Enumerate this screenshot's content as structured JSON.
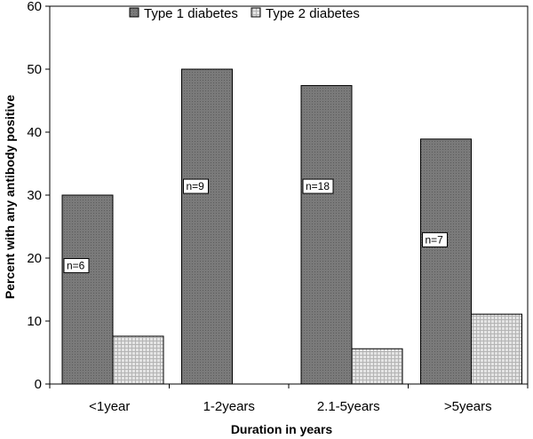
{
  "chart_data": {
    "type": "bar",
    "categories": [
      "<1year",
      "1-2years",
      "2.1-5years",
      ">5years"
    ],
    "series": [
      {
        "name": "Type 1 diabetes",
        "values": [
          30,
          50,
          47.4,
          38.9
        ],
        "color": "#7a7a7a"
      },
      {
        "name": "Type 2 diabetes",
        "values": [
          7.6,
          0,
          5.6,
          11.1
        ],
        "color": "#d8d8d8"
      }
    ],
    "annotations": [
      "n=6",
      "n=9",
      "n=18",
      "n=7"
    ],
    "annotation_values": [
      18.8,
      31.4,
      31.4,
      22.9
    ],
    "xlabel": "Duration in years",
    "ylabel": "Percent with any antibody positive",
    "ylim": [
      0,
      60
    ],
    "yticks": [
      0,
      10,
      20,
      30,
      40,
      50,
      60
    ],
    "grid": false,
    "legend_position": "top"
  }
}
